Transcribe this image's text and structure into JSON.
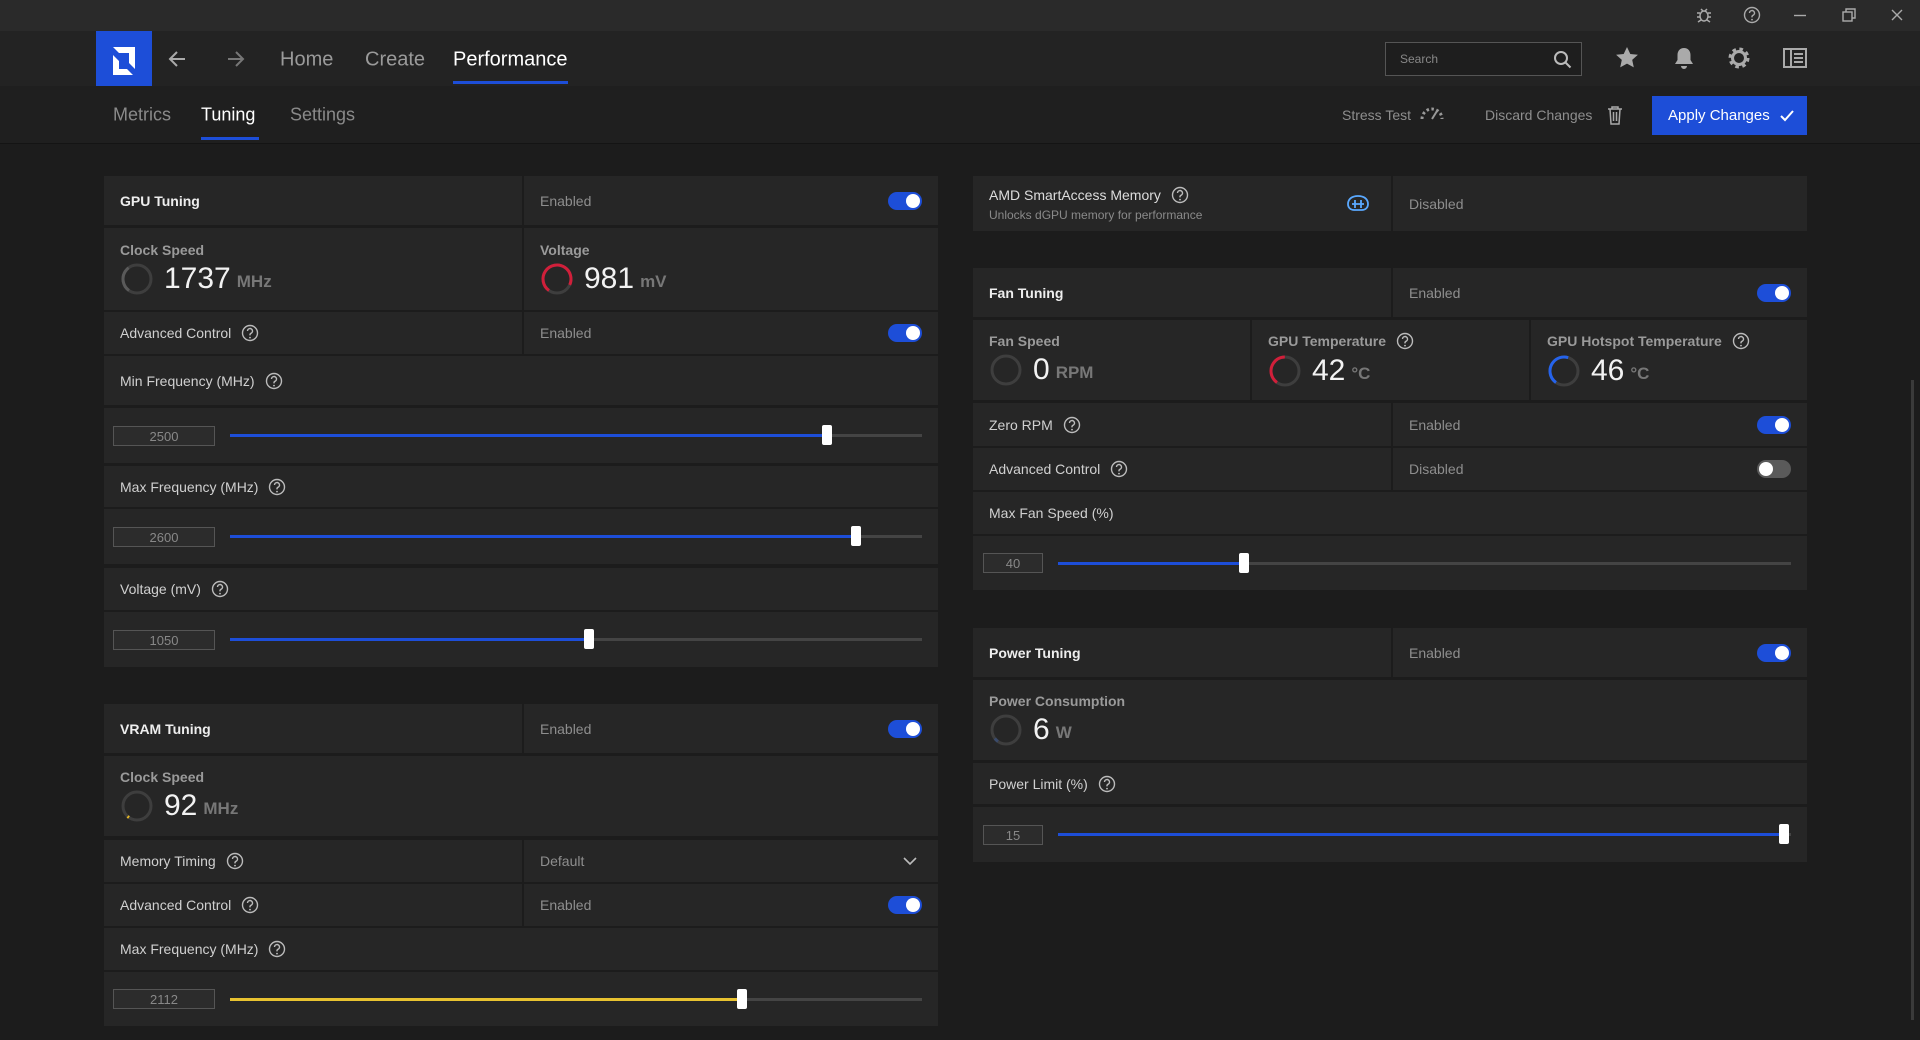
{
  "window": {
    "nav": [
      "Home",
      "Create",
      "Performance"
    ],
    "search_placeholder": "Search"
  },
  "subnav": {
    "tabs": [
      "Metrics",
      "Tuning",
      "Settings"
    ],
    "stress_test": "Stress Test",
    "discard": "Discard Changes",
    "apply": "Apply Changes"
  },
  "gpu_tuning": {
    "title": "GPU Tuning",
    "status": "Enabled",
    "toggle": true,
    "clock_speed": {
      "label": "Clock Speed",
      "value": 1737,
      "unit": "MHz"
    },
    "voltage": {
      "label": "Voltage",
      "value": 981,
      "unit": "mV"
    },
    "advanced_control": {
      "label": "Advanced Control",
      "status": "Enabled",
      "toggle": true
    },
    "min_frequency": {
      "label": "Min Frequency (MHz)",
      "value": 2500
    },
    "max_frequency": {
      "label": "Max Frequency (MHz)",
      "value": 2600
    },
    "voltage_setting": {
      "label": "Voltage (mV)",
      "value": 1050
    }
  },
  "vram_tuning": {
    "title": "VRAM Tuning",
    "status": "Enabled",
    "toggle": true,
    "clock_speed": {
      "label": "Clock Speed",
      "value": 92,
      "unit": "MHz"
    },
    "memory_timing": {
      "label": "Memory Timing",
      "value": "Default"
    },
    "advanced_control": {
      "label": "Advanced Control",
      "status": "Enabled",
      "toggle": true
    },
    "max_frequency": {
      "label": "Max Frequency (MHz)",
      "value": 2112
    }
  },
  "smart_access_memory": {
    "title": "AMD SmartAccess Memory",
    "subtitle": "Unlocks dGPU memory for performance",
    "status": "Disabled"
  },
  "fan_tuning": {
    "title": "Fan Tuning",
    "status": "Enabled",
    "toggle": true,
    "fan_speed": {
      "label": "Fan Speed",
      "value": 0,
      "unit": "RPM"
    },
    "gpu_temperature": {
      "label": "GPU Temperature",
      "value": 42,
      "unit": "°C"
    },
    "hotspot_temperature": {
      "label": "GPU Hotspot Temperature",
      "value": 46,
      "unit": "°C"
    },
    "zero_rpm": {
      "label": "Zero RPM",
      "status": "Enabled",
      "toggle": true
    },
    "advanced_control": {
      "label": "Advanced Control",
      "status": "Disabled",
      "toggle": false
    },
    "max_fan_speed": {
      "label": "Max Fan Speed (%)",
      "value": 40
    }
  },
  "power_tuning": {
    "title": "Power Tuning",
    "status": "Enabled",
    "toggle": true,
    "power_consumption": {
      "label": "Power Consumption",
      "value": 6,
      "unit": "W"
    },
    "power_limit": {
      "label": "Power Limit (%)",
      "value": 15
    }
  }
}
